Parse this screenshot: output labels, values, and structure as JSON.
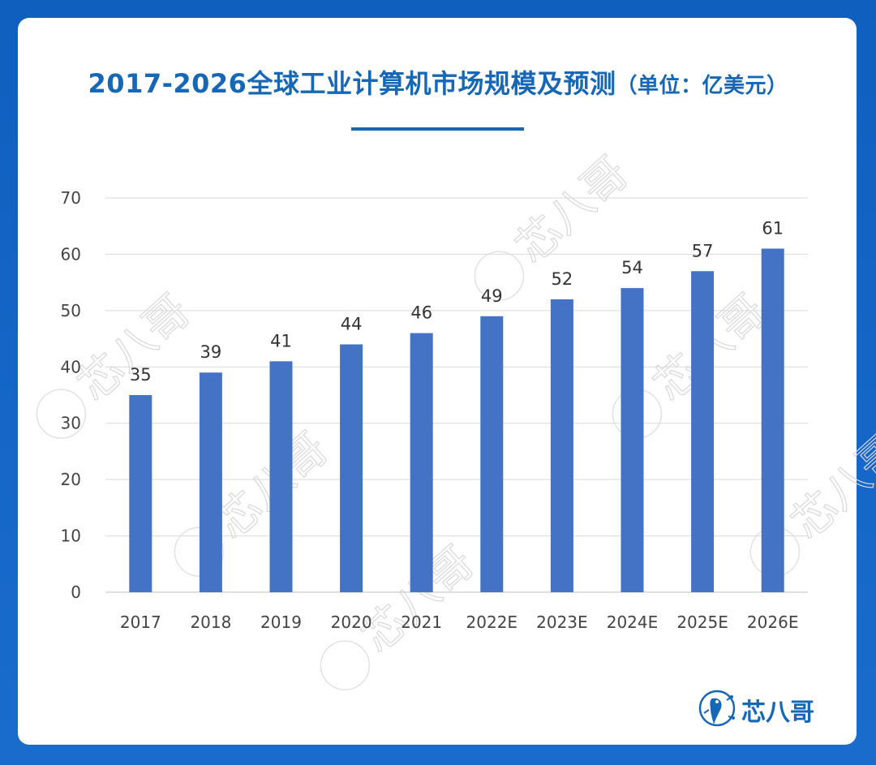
{
  "title": {
    "main": "2017-2026全球工业计算机市场规模及预测",
    "unit": "（单位：亿美元）"
  },
  "brand": {
    "name": "芯八哥",
    "icon": "bird-logo-icon",
    "color": "#1767b7"
  },
  "watermark": {
    "text": "芯八哥"
  },
  "colors": {
    "background": "#1565c0",
    "card": "#ffffff",
    "bar": "#4472c4",
    "title": "#1767b7",
    "grid": "#d9d9d9"
  },
  "chart_data": {
    "type": "bar",
    "categories": [
      "2017",
      "2018",
      "2019",
      "2020",
      "2021",
      "2022E",
      "2023E",
      "2024E",
      "2025E",
      "2026E"
    ],
    "values": [
      35,
      39,
      41,
      44,
      46,
      49,
      52,
      54,
      57,
      61
    ],
    "data_labels": [
      "35",
      "39",
      "41",
      "44",
      "46",
      "49",
      "52",
      "54",
      "57",
      "61"
    ],
    "yticks": [
      0,
      10,
      20,
      30,
      40,
      50,
      60,
      70
    ],
    "ylim": [
      0,
      70
    ],
    "grid": true,
    "legend": "none"
  }
}
